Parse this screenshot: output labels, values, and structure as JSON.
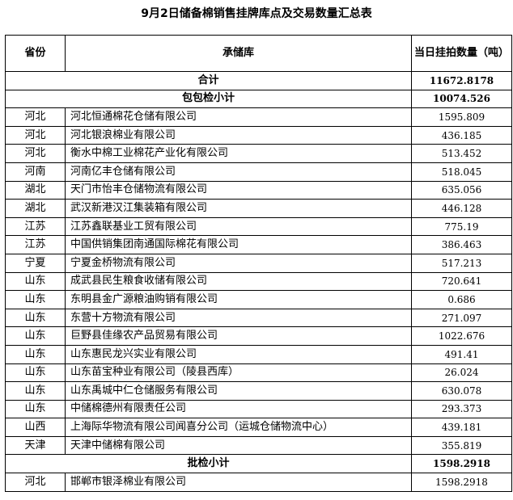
{
  "title": "9月2日储备棉销售挂牌库点及交易数量汇总表",
  "header": {
    "province": "省份",
    "warehouse": "承储库",
    "quantity": "当日挂拍数量（吨）"
  },
  "total": {
    "label": "合计",
    "value": "11672.8178"
  },
  "groups": [
    {
      "label": "包包检小计",
      "value": "10074.526",
      "rows": [
        {
          "province": "河北",
          "warehouse": "河北恒通棉花仓储有限公司",
          "quantity": "1595.809"
        },
        {
          "province": "河北",
          "warehouse": "河北银浪棉业有限公司",
          "quantity": "436.185"
        },
        {
          "province": "河北",
          "warehouse": "衡水中棉工业棉花产业化有限公司",
          "quantity": "513.452"
        },
        {
          "province": "河南",
          "warehouse": "河南亿丰仓储有限公司",
          "quantity": "518.045"
        },
        {
          "province": "湖北",
          "warehouse": "天门市怡丰仓储物流有限公司",
          "quantity": "635.056"
        },
        {
          "province": "湖北",
          "warehouse": "武汉新港汉江集装箱有限公司",
          "quantity": "446.128"
        },
        {
          "province": "江苏",
          "warehouse": "江苏鑫联基业工贸有限公司",
          "quantity": "775.19"
        },
        {
          "province": "江苏",
          "warehouse": "中国供销集团南通国际棉花有限公司",
          "quantity": "386.463"
        },
        {
          "province": "宁夏",
          "warehouse": "宁夏金桥物流有限公司",
          "quantity": "517.213"
        },
        {
          "province": "山东",
          "warehouse": "成武县民生粮食收储有限公司",
          "quantity": "720.641"
        },
        {
          "province": "山东",
          "warehouse": "东明县金广源粮油购销有限公司",
          "quantity": "0.686"
        },
        {
          "province": "山东",
          "warehouse": "东营十方物流有限公司",
          "quantity": "271.097"
        },
        {
          "province": "山东",
          "warehouse": "巨野县佳缘农产品贸易有限公司",
          "quantity": "1022.676"
        },
        {
          "province": "山东",
          "warehouse": "山东惠民龙兴实业有限公司",
          "quantity": "491.41"
        },
        {
          "province": "山东",
          "warehouse": "山东苗宝种业有限公司（陵县西库）",
          "quantity": "26.024"
        },
        {
          "province": "山东",
          "warehouse": "山东禹城中仁仓储服务有限公司",
          "quantity": "630.078"
        },
        {
          "province": "山东",
          "warehouse": "中储棉德州有限责任公司",
          "quantity": "293.373"
        },
        {
          "province": "山西",
          "warehouse": "上海际华物流有限公司闻喜分公司（运城仓储物流中心）",
          "quantity": "439.181"
        },
        {
          "province": "天津",
          "warehouse": "天津中储棉有限公司",
          "quantity": "355.819"
        }
      ]
    },
    {
      "label": "批检小计",
      "value": "1598.2918",
      "rows": [
        {
          "province": "河北",
          "warehouse": "邯郸市银泽棉业有限公司",
          "quantity": "1598.2918"
        }
      ]
    }
  ]
}
